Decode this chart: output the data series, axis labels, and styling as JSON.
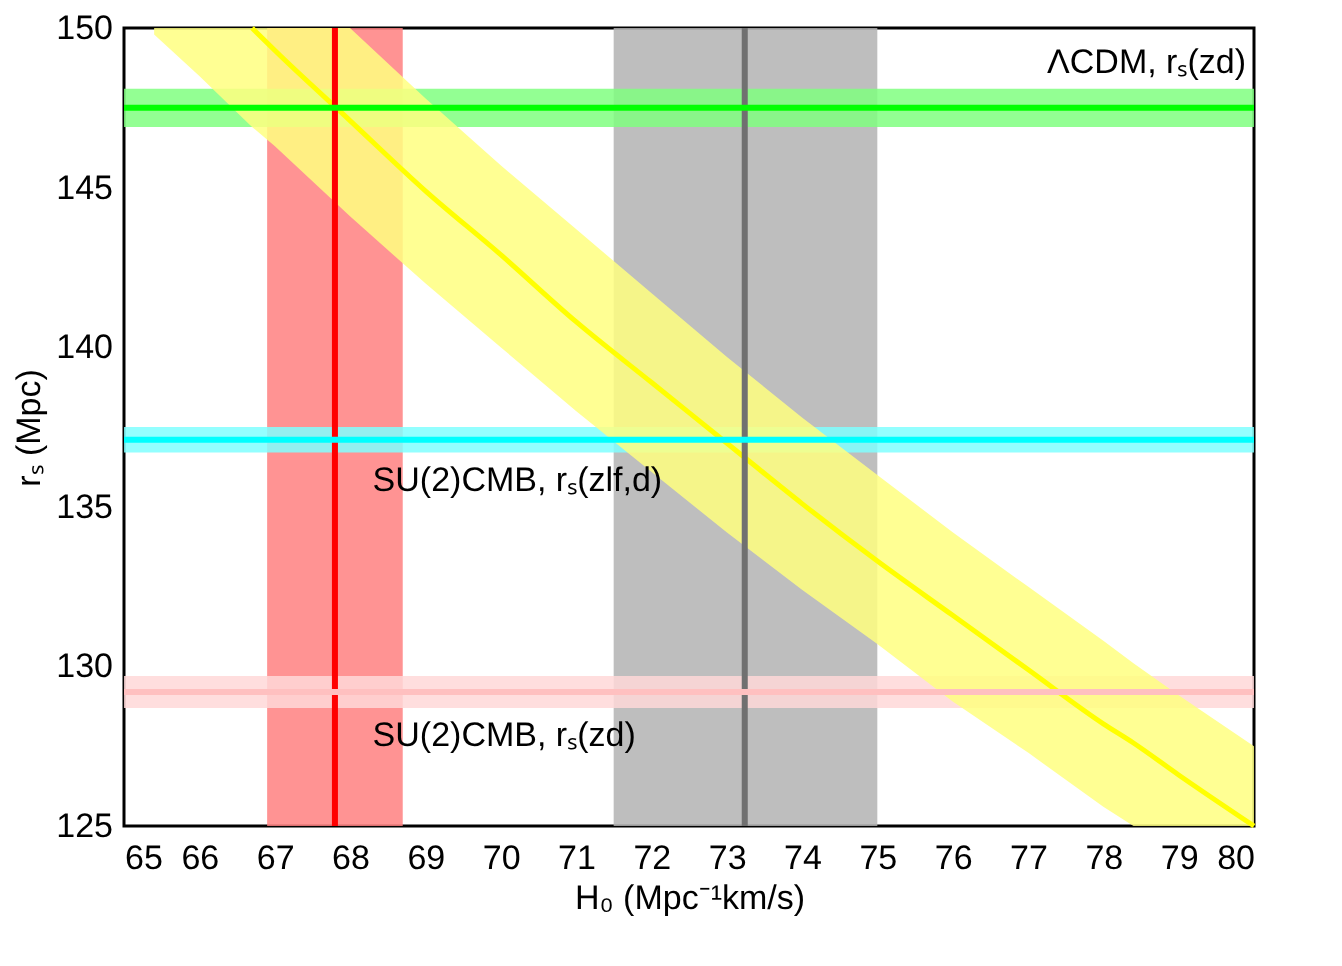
{
  "chart_data": {
    "type": "line",
    "xlabel": "H₀ (Mpc⁻¹km/s)",
    "ylabel": "rₛ (Mpc)",
    "xlim": [
      65,
      80
    ],
    "xticks": [
      65,
      66,
      67,
      68,
      69,
      70,
      71,
      72,
      73,
      74,
      75,
      76,
      77,
      78,
      79,
      80
    ],
    "ylim": [
      125,
      150
    ],
    "yticks": [
      125,
      130,
      135,
      140,
      145,
      150
    ],
    "series": [
      {
        "color": "#ffff00",
        "x": [
          65.4,
          66,
          66.7,
          67,
          68,
          69,
          70,
          71,
          72,
          73,
          74,
          75,
          76,
          77,
          78,
          78.4,
          79,
          80
        ],
        "values": [
          null,
          null,
          150.0,
          149.3,
          147.1,
          144.9,
          142.9,
          140.8,
          138.9,
          137.0,
          135.1,
          133.3,
          131.6,
          129.9,
          128.2,
          127.6,
          126.6,
          125.0
        ],
        "lower": [
          149.8,
          148.5,
          146.9,
          146.3,
          144.1,
          142.0,
          140.0,
          138.0,
          136.1,
          134.2,
          132.4,
          130.7,
          128.9,
          127.3,
          125.6,
          125.0,
          125.0,
          125.0
        ],
        "upper": [
          150.0,
          150.0,
          150.0,
          150.0,
          150.0,
          147.8,
          145.7,
          143.7,
          141.7,
          139.7,
          137.8,
          136.0,
          134.2,
          132.5,
          130.8,
          130.1,
          129.1,
          127.5
        ]
      }
    ],
    "bands": [
      {
        "axis": "x",
        "from": 66.9,
        "to": 68.7,
        "color": "#ff8080"
      },
      {
        "axis": "x",
        "from": 71.5,
        "to": 75.0,
        "color": "#b3b3b3"
      },
      {
        "axis": "y",
        "from": 146.9,
        "to": 148.1,
        "color": "#80ff80",
        "label": "ΛCDM, rₛ(zd)"
      },
      {
        "axis": "y",
        "from": 136.7,
        "to": 137.5,
        "color": "#80ffff",
        "label": "SU(2)CMB, rₛ(zlf,d)"
      },
      {
        "axis": "y",
        "from": 128.7,
        "to": 129.7,
        "color": "#ffd8d8",
        "label": "SU(2)CMB, rₛ(zd)"
      }
    ],
    "ref_lines": [
      {
        "axis": "x",
        "value": 67.8,
        "color": "#ff0000"
      },
      {
        "axis": "x",
        "value": 73.24,
        "color": "#707070"
      },
      {
        "axis": "y",
        "value": 147.5,
        "color": "#00ff00"
      },
      {
        "axis": "y",
        "value": 137.1,
        "color": "#00ffff"
      },
      {
        "axis": "y",
        "value": 129.2,
        "color": "#ffc0c0"
      }
    ],
    "grid": false
  }
}
